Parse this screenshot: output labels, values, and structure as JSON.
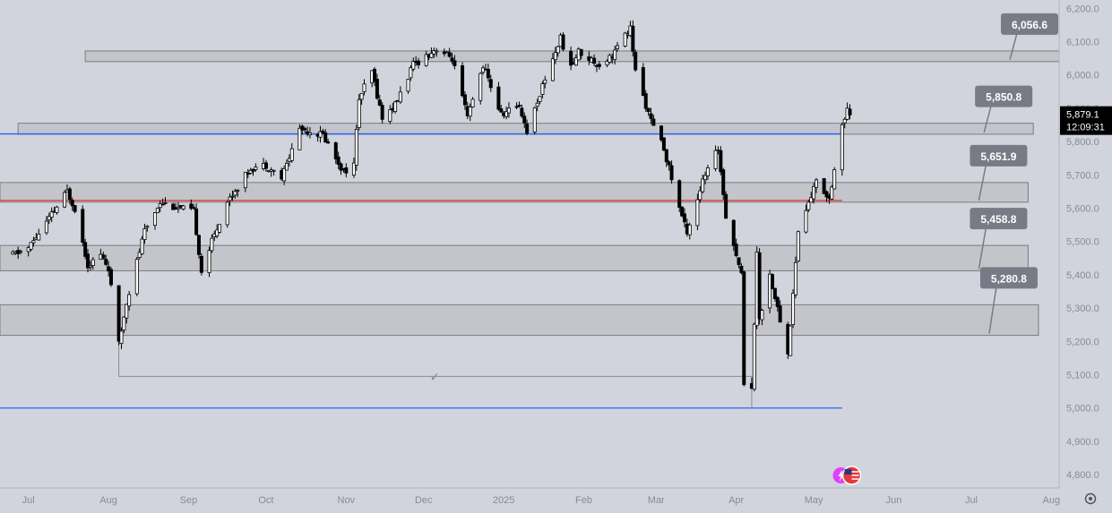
{
  "chart_data": {
    "type": "candlestick",
    "y_axis": {
      "ticks": [
        6200,
        6100,
        6000,
        5900,
        5800,
        5700,
        5600,
        5500,
        5400,
        5300,
        5200,
        5100,
        5000,
        4900,
        4800
      ],
      "tick_labels": [
        "6,200.0",
        "6,100.0",
        "6,000.0",
        "5,900.0",
        "5,800.0",
        "5,700.0",
        "5,600.0",
        "5,500.0",
        "5,400.0",
        "5,300.0",
        "5,200.0",
        "5,100.0",
        "5,000.0",
        "4,900.0",
        "4,800.0"
      ],
      "range": [
        4760,
        6225
      ]
    },
    "x_axis": {
      "ticks": [
        {
          "label": "Jul",
          "date": "2024-07-01"
        },
        {
          "label": "Aug",
          "date": "2024-08-01"
        },
        {
          "label": "Sep",
          "date": "2024-09-01"
        },
        {
          "label": "Oct",
          "date": "2024-10-01"
        },
        {
          "label": "Nov",
          "date": "2024-11-01"
        },
        {
          "label": "Dec",
          "date": "2024-12-01"
        },
        {
          "label": "2025",
          "date": "2025-01-01"
        },
        {
          "label": "Feb",
          "date": "2025-02-01"
        },
        {
          "label": "Mar",
          "date": "2025-03-01"
        },
        {
          "label": "Apr",
          "date": "2025-04-01"
        },
        {
          "label": "May",
          "date": "2025-05-01"
        },
        {
          "label": "Jun",
          "date": "2025-06-01"
        },
        {
          "label": "Jul",
          "date": "2025-07-01"
        },
        {
          "label": "Aug",
          "date": "2025-08-01"
        }
      ],
      "range": [
        "2024-06-20",
        "2025-08-04"
      ]
    },
    "price_path": [
      [
        "2024-06-25",
        5460
      ],
      [
        "2024-07-01",
        5480
      ],
      [
        "2024-07-10",
        5580
      ],
      [
        "2024-07-16",
        5650
      ],
      [
        "2024-07-19",
        5600
      ],
      [
        "2024-07-24",
        5430
      ],
      [
        "2024-07-29",
        5460
      ],
      [
        "2024-08-01",
        5420
      ],
      [
        "2024-08-05",
        5190
      ],
      [
        "2024-08-08",
        5320
      ],
      [
        "2024-08-15",
        5530
      ],
      [
        "2024-08-21",
        5620
      ],
      [
        "2024-08-28",
        5600
      ],
      [
        "2024-09-03",
        5590
      ],
      [
        "2024-09-06",
        5410
      ],
      [
        "2024-09-10",
        5500
      ],
      [
        "2024-09-16",
        5620
      ],
      [
        "2024-09-25",
        5720
      ],
      [
        "2024-10-01",
        5730
      ],
      [
        "2024-10-07",
        5690
      ],
      [
        "2024-10-14",
        5840
      ],
      [
        "2024-10-23",
        5820
      ],
      [
        "2024-10-31",
        5710
      ],
      [
        "2024-11-04",
        5730
      ],
      [
        "2024-11-06",
        5930
      ],
      [
        "2024-11-11",
        6010
      ],
      [
        "2024-11-15",
        5870
      ],
      [
        "2024-11-20",
        5910
      ],
      [
        "2024-11-27",
        6030
      ],
      [
        "2024-12-06",
        6080
      ],
      [
        "2024-12-12",
        6050
      ],
      [
        "2024-12-18",
        5870
      ],
      [
        "2024-12-24",
        6030
      ],
      [
        "2024-12-31",
        5880
      ],
      [
        "2025-01-07",
        5910
      ],
      [
        "2025-01-10",
        5830
      ],
      [
        "2025-01-17",
        5990
      ],
      [
        "2025-01-23",
        6110
      ],
      [
        "2025-01-27",
        6020
      ],
      [
        "2025-01-30",
        6070
      ],
      [
        "2025-02-07",
        6030
      ],
      [
        "2025-02-12",
        6060
      ],
      [
        "2025-02-19",
        6140
      ],
      [
        "2025-02-21",
        6010
      ],
      [
        "2025-02-27",
        5860
      ],
      [
        "2025-03-04",
        5780
      ],
      [
        "2025-03-10",
        5600
      ],
      [
        "2025-03-13",
        5530
      ],
      [
        "2025-03-19",
        5680
      ],
      [
        "2025-03-25",
        5780
      ],
      [
        "2025-03-28",
        5580
      ],
      [
        "2025-04-03",
        5400
      ],
      [
        "2025-04-04",
        5080
      ],
      [
        "2025-04-07",
        5060
      ],
      [
        "2025-04-09",
        5460
      ],
      [
        "2025-04-10",
        5270
      ],
      [
        "2025-04-14",
        5400
      ],
      [
        "2025-04-21",
        5160
      ],
      [
        "2025-04-25",
        5530
      ],
      [
        "2025-05-02",
        5680
      ],
      [
        "2025-05-07",
        5630
      ],
      [
        "2025-05-12",
        5850
      ],
      [
        "2025-05-14",
        5890
      ],
      [
        "2025-05-15",
        5879.1
      ]
    ]
  },
  "zones": [
    {
      "label": "6,056.6",
      "top": 6072,
      "bottom": 6040,
      "from": "2024-07-23",
      "to": "2025-08-04"
    },
    {
      "label": "5,850.8",
      "top": 5855,
      "bottom": 5822,
      "from": "2024-06-27",
      "to": "2025-07-25"
    },
    {
      "label": "5,651.9",
      "top": 5677,
      "bottom": 5618,
      "from": "2024-06-20",
      "to": "2025-07-23"
    },
    {
      "label": "5,458.8",
      "top": 5488,
      "bottom": 5412,
      "from": "2024-06-20",
      "to": "2025-07-23"
    },
    {
      "label": "5,280.8",
      "top": 5310,
      "bottom": 5218,
      "from": "2024-06-20",
      "to": "2025-07-27"
    }
  ],
  "lines": [
    {
      "price": 5823,
      "color": "#2962ff",
      "from": "2024-06-20",
      "to": "2025-05-12"
    },
    {
      "price": 5623,
      "color": "#e53935",
      "from": "2024-06-20",
      "to": "2025-05-12"
    },
    {
      "price": 5000,
      "color": "#2962ff",
      "from": "2024-06-20",
      "to": "2025-05-12"
    }
  ],
  "bracket": {
    "price": 5095,
    "from": "2024-08-05",
    "to": "2025-04-07",
    "glyph": "✓"
  },
  "current_price": {
    "value": "5,879.1",
    "countdown": "12:09:31"
  },
  "icons": [
    "lightning-flag-icon",
    "us-flag-icon",
    "settings-gear-icon"
  ],
  "colors": {
    "background": "#d1d4dc",
    "zone_fill": "#c3c5cb",
    "zone_border": "#7b7d82",
    "label_bg": "#787b86",
    "blue": "#2962ff",
    "red": "#e53935",
    "price_tag": "#000000"
  }
}
